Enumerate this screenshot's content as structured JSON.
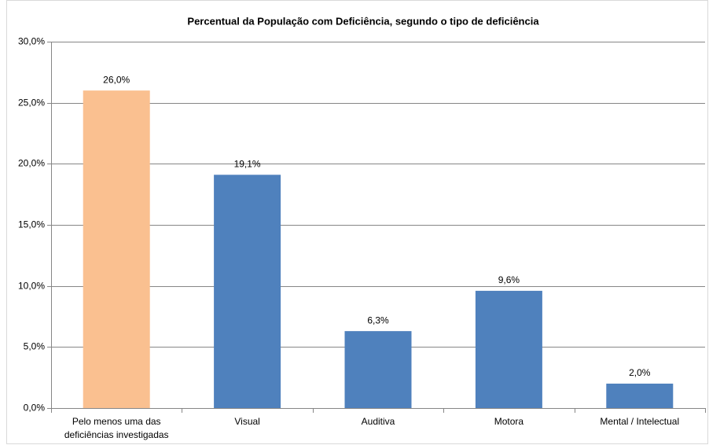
{
  "chart_data": {
    "type": "bar",
    "title": "Percentual da População com Deficiência, segundo o tipo de deficiência",
    "categories": [
      "Pelo menos uma das deficiências investigadas",
      "Visual",
      "Auditiva",
      "Motora",
      "Mental / Intelectual"
    ],
    "values": [
      26.0,
      19.1,
      6.3,
      9.6,
      2.0
    ],
    "value_labels": [
      "26,0%",
      "19,1%",
      "6,3%",
      "9,6%",
      "2,0%"
    ],
    "colors": [
      "#FAC090",
      "#4F81BD",
      "#4F81BD",
      "#4F81BD",
      "#4F81BD"
    ],
    "ylim": [
      0,
      30
    ],
    "yticks": [
      {
        "value": 0,
        "label": "0,0%"
      },
      {
        "value": 5,
        "label": "5,0%"
      },
      {
        "value": 10,
        "label": "10,0%"
      },
      {
        "value": 15,
        "label": "15,0%"
      },
      {
        "value": 20,
        "label": "20,0%"
      },
      {
        "value": 25,
        "label": "25,0%"
      },
      {
        "value": 30,
        "label": "30,0%"
      }
    ],
    "grid": true
  }
}
